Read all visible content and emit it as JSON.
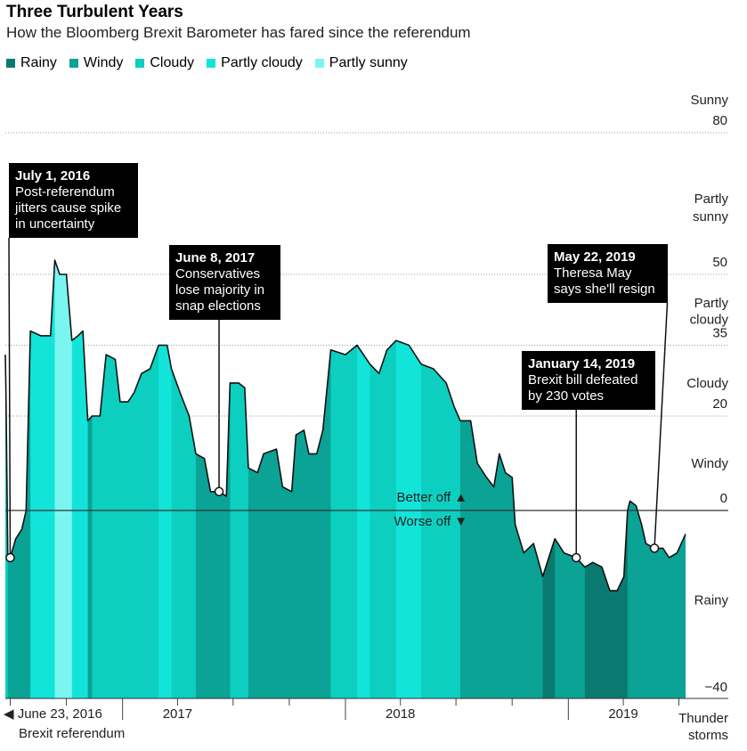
{
  "title": "Three Turbulent Years",
  "subtitle": "How the Bloomberg Brexit Barometer has fared since the referendum",
  "colors": {
    "rainy": "#0a7a70",
    "windy": "#0aa396",
    "cloudy": "#0ccfc0",
    "partly_cloudy": "#12e4da",
    "partly_sunny": "#7af5f0"
  },
  "chart_data": {
    "type": "area",
    "title": "Three Turbulent Years",
    "subtitle": "How the Bloomberg Brexit Barometer has fared since the referendum",
    "xlabel": "",
    "ylabel": "",
    "ylim": [
      -40,
      95
    ],
    "y_ticks": [
      {
        "value": 80,
        "label": "80"
      },
      {
        "value": 50,
        "label": "50"
      },
      {
        "value": 35,
        "label": "35"
      },
      {
        "value": 20,
        "label": "20"
      },
      {
        "value": 0,
        "label": "0"
      },
      {
        "value": -40,
        "label": "−40"
      }
    ],
    "zone_labels": [
      {
        "text": "Sunny",
        "y": 87
      },
      {
        "text": "Partly",
        "y": 66
      },
      {
        "text": "sunny",
        "y": 62.3
      },
      {
        "text": "Partly",
        "y": 44
      },
      {
        "text": "cloudy",
        "y": 40.5
      },
      {
        "text": "Cloudy",
        "y": 27
      },
      {
        "text": "Windy",
        "y": 10
      },
      {
        "text": "Rainy",
        "y": -19
      },
      {
        "text": "Thunder",
        "y": -44
      },
      {
        "text": "storms",
        "y": -47.5
      }
    ],
    "legend": [
      {
        "name": "Rainy",
        "key": "rainy"
      },
      {
        "name": "Windy",
        "key": "windy"
      },
      {
        "name": "Cloudy",
        "key": "cloudy"
      },
      {
        "name": "Partly cloudy",
        "key": "partly_cloudy"
      },
      {
        "name": "Partly sunny",
        "key": "partly_sunny"
      }
    ],
    "x_range": [
      "2016-06-23",
      "2019-07-12"
    ],
    "x_labels": [
      {
        "text": "◀ June 23, 2016",
        "date": "2016-06-23",
        "align": "start"
      },
      {
        "text": "2017",
        "date": "2017-01-01",
        "align": "middle",
        "mid": "2017-04-01"
      },
      {
        "text": "2018",
        "date": "2018-01-01",
        "align": "middle",
        "mid": "2018-04-01"
      },
      {
        "text": "2019",
        "date": "2019-01-01",
        "align": "middle",
        "mid": "2019-04-01"
      }
    ],
    "x_sublabel": "Brexit referendum",
    "month_ticks": [
      "2016-07-01",
      "2016-10-01",
      "2017-01-01",
      "2017-04-01",
      "2017-07-01",
      "2017-10-01",
      "2018-01-01",
      "2018-04-01",
      "2018-07-01",
      "2018-10-01",
      "2019-01-01",
      "2019-04-01",
      "2019-07-01"
    ],
    "reference_labels": {
      "better": "Better off ▲",
      "worse": "Worse off ▼"
    },
    "series": [
      {
        "date": "2016-06-23",
        "value": 33
      },
      {
        "date": "2016-06-24",
        "value": 25
      },
      {
        "date": "2016-06-27",
        "value": -10
      },
      {
        "date": "2016-07-01",
        "value": -10
      },
      {
        "date": "2016-07-10",
        "value": -6
      },
      {
        "date": "2016-07-20",
        "value": -4
      },
      {
        "date": "2016-07-27",
        "value": 0
      },
      {
        "date": "2016-08-03",
        "value": 38
      },
      {
        "date": "2016-08-20",
        "value": 37
      },
      {
        "date": "2016-09-05",
        "value": 37
      },
      {
        "date": "2016-09-12",
        "value": 53
      },
      {
        "date": "2016-09-20",
        "value": 50
      },
      {
        "date": "2016-10-01",
        "value": 50
      },
      {
        "date": "2016-10-10",
        "value": 36
      },
      {
        "date": "2016-10-20",
        "value": 37
      },
      {
        "date": "2016-10-28",
        "value": 38
      },
      {
        "date": "2016-11-05",
        "value": 19
      },
      {
        "date": "2016-11-12",
        "value": 20
      },
      {
        "date": "2016-11-25",
        "value": 20
      },
      {
        "date": "2016-12-05",
        "value": 33
      },
      {
        "date": "2016-12-20",
        "value": 32
      },
      {
        "date": "2016-12-28",
        "value": 23
      },
      {
        "date": "2017-01-10",
        "value": 23
      },
      {
        "date": "2017-01-20",
        "value": 25
      },
      {
        "date": "2017-02-01",
        "value": 29
      },
      {
        "date": "2017-02-15",
        "value": 30
      },
      {
        "date": "2017-03-01",
        "value": 35
      },
      {
        "date": "2017-03-15",
        "value": 35
      },
      {
        "date": "2017-03-22",
        "value": 30
      },
      {
        "date": "2017-04-05",
        "value": 25
      },
      {
        "date": "2017-04-20",
        "value": 20
      },
      {
        "date": "2017-05-01",
        "value": 12
      },
      {
        "date": "2017-05-15",
        "value": 11
      },
      {
        "date": "2017-05-25",
        "value": 4
      },
      {
        "date": "2017-06-08",
        "value": 4
      },
      {
        "date": "2017-06-20",
        "value": 3
      },
      {
        "date": "2017-06-26",
        "value": 27
      },
      {
        "date": "2017-07-10",
        "value": 27
      },
      {
        "date": "2017-07-20",
        "value": 26
      },
      {
        "date": "2017-07-26",
        "value": 9
      },
      {
        "date": "2017-08-10",
        "value": 8
      },
      {
        "date": "2017-08-20",
        "value": 12
      },
      {
        "date": "2017-09-10",
        "value": 13
      },
      {
        "date": "2017-09-20",
        "value": 5
      },
      {
        "date": "2017-10-05",
        "value": 4
      },
      {
        "date": "2017-10-12",
        "value": 16
      },
      {
        "date": "2017-10-25",
        "value": 17
      },
      {
        "date": "2017-11-02",
        "value": 12
      },
      {
        "date": "2017-11-15",
        "value": 12
      },
      {
        "date": "2017-11-25",
        "value": 17
      },
      {
        "date": "2017-12-08",
        "value": 34
      },
      {
        "date": "2018-01-01",
        "value": 33
      },
      {
        "date": "2018-01-20",
        "value": 35
      },
      {
        "date": "2018-02-10",
        "value": 31
      },
      {
        "date": "2018-02-25",
        "value": 29
      },
      {
        "date": "2018-03-10",
        "value": 34
      },
      {
        "date": "2018-03-25",
        "value": 36
      },
      {
        "date": "2018-04-15",
        "value": 35
      },
      {
        "date": "2018-05-05",
        "value": 31
      },
      {
        "date": "2018-05-25",
        "value": 30
      },
      {
        "date": "2018-06-15",
        "value": 27
      },
      {
        "date": "2018-06-28",
        "value": 22
      },
      {
        "date": "2018-07-08",
        "value": 19
      },
      {
        "date": "2018-07-25",
        "value": 19
      },
      {
        "date": "2018-08-05",
        "value": 10
      },
      {
        "date": "2018-08-20",
        "value": 7
      },
      {
        "date": "2018-09-01",
        "value": 5
      },
      {
        "date": "2018-09-10",
        "value": 12
      },
      {
        "date": "2018-09-20",
        "value": 8
      },
      {
        "date": "2018-10-01",
        "value": 7
      },
      {
        "date": "2018-10-06",
        "value": -3
      },
      {
        "date": "2018-10-20",
        "value": -9
      },
      {
        "date": "2018-11-05",
        "value": -7
      },
      {
        "date": "2018-11-20",
        "value": -14
      },
      {
        "date": "2018-12-10",
        "value": -6
      },
      {
        "date": "2018-12-25",
        "value": -9
      },
      {
        "date": "2019-01-14",
        "value": -10
      },
      {
        "date": "2019-01-28",
        "value": -12
      },
      {
        "date": "2019-02-10",
        "value": -11
      },
      {
        "date": "2019-02-25",
        "value": -12
      },
      {
        "date": "2019-03-10",
        "value": -17
      },
      {
        "date": "2019-03-22",
        "value": -17
      },
      {
        "date": "2019-04-02",
        "value": -14
      },
      {
        "date": "2019-04-08",
        "value": 0
      },
      {
        "date": "2019-04-12",
        "value": 2
      },
      {
        "date": "2019-04-22",
        "value": 1
      },
      {
        "date": "2019-05-01",
        "value": -3
      },
      {
        "date": "2019-05-08",
        "value": -7
      },
      {
        "date": "2019-05-22",
        "value": -8
      },
      {
        "date": "2019-06-05",
        "value": -8
      },
      {
        "date": "2019-06-15",
        "value": -10
      },
      {
        "date": "2019-06-28",
        "value": -9
      },
      {
        "date": "2019-07-12",
        "value": -5
      }
    ],
    "annotations": [
      {
        "date": "2016-07-01",
        "value": -10,
        "label_date": "July 1, 2016",
        "lines": [
          "Post-referendum",
          "jitters cause spike",
          "in uncertainty"
        ]
      },
      {
        "date": "2017-06-08",
        "value": 4,
        "label_date": "June 8, 2017",
        "lines": [
          "Conservatives",
          "lose majority in",
          "snap elections"
        ]
      },
      {
        "date": "2019-01-14",
        "value": -10,
        "label_date": "January 14, 2019",
        "lines": [
          "Brexit bill defeated",
          "by 230 votes"
        ]
      },
      {
        "date": "2019-05-22",
        "value": -8,
        "label_date": "May 22, 2019",
        "lines": [
          "Theresa May",
          "says she'll resign"
        ]
      }
    ]
  }
}
